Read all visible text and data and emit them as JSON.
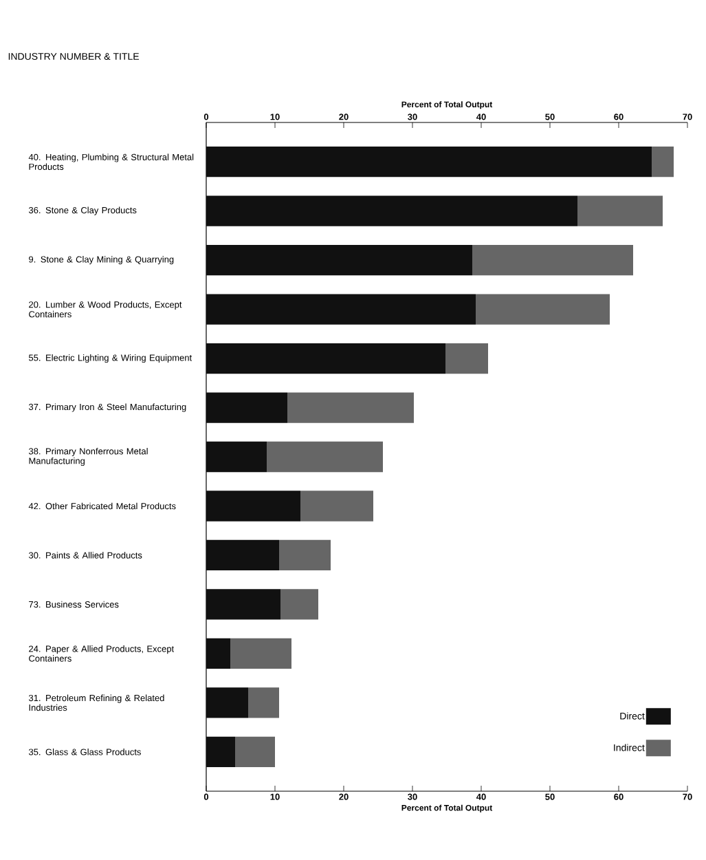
{
  "chart_data": {
    "type": "bar",
    "orientation": "horizontal",
    "stacked": true,
    "categories": [
      "40. Heating, Plumbing & Structural Metal Products",
      "36. Stone & Clay Products",
      "9. Stone & Clay Mining & Quarrying",
      "20. Lumber & Wood Products, Except Containers",
      "55. Electric Lighting & Wiring Equipment",
      "37. Primary Iron & Steel Manufacturing",
      "38. Primary Nonferrous Metal Manufacturing",
      "42. Other Fabricated Metal Products",
      "30. Paints & Allied Products",
      "73. Business Services",
      "24. Paper & Allied Products, Except Containers",
      "31. Petroleum Refining & Related Industries",
      "35. Glass & Glass Products"
    ],
    "series": [
      {
        "name": "Direct",
        "color": "#111111",
        "values": [
          64.8,
          54.0,
          38.7,
          39.2,
          34.8,
          11.8,
          8.8,
          13.7,
          10.6,
          10.8,
          3.5,
          6.1,
          4.2
        ]
      },
      {
        "name": "Indirect",
        "color": "#666666",
        "values": [
          3.2,
          12.4,
          23.4,
          19.5,
          6.2,
          18.4,
          16.9,
          10.6,
          7.5,
          5.5,
          8.9,
          4.5,
          5.8
        ]
      }
    ],
    "xlabel": "Percent of Total Output",
    "x2label": "Percent of Total Output",
    "xlim": [
      0,
      70
    ],
    "xticks": [
      0,
      10,
      20,
      30,
      40,
      50,
      60,
      70
    ],
    "x2lim": [
      0,
      70
    ],
    "x2ticks": [
      0,
      10,
      20,
      30,
      40,
      50,
      60,
      70
    ],
    "legend": "bottom right",
    "annotations": [
      "INDUSTRY NUMBER & TITLE"
    ]
  }
}
